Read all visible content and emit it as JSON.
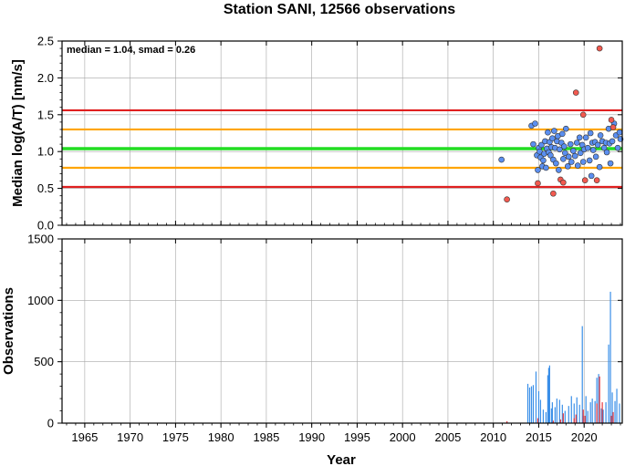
{
  "chart_data": [
    {
      "type": "scatter",
      "title": "Station SANI, 12566 observations",
      "xlabel": "",
      "ylabel": "Median log(A/T) [nm/s]",
      "xlim": [
        1962.5,
        2024.2
      ],
      "ylim": [
        0,
        2.5
      ],
      "y_ticks": [
        "0.0",
        "0.5",
        "1.0",
        "1.5",
        "2.0",
        "2.5"
      ],
      "grid": true,
      "annotation": "median = 1.04, smad = 0.26",
      "reference_lines": [
        {
          "role": "median",
          "y": 1.04,
          "color": "#22dd22"
        },
        {
          "role": "plus-one-smad",
          "y": 1.3,
          "color": "#ffa500"
        },
        {
          "role": "minus-one-smad",
          "y": 0.78,
          "color": "#ffa500"
        },
        {
          "role": "plus-two-smad",
          "y": 1.56,
          "color": "#e02020"
        },
        {
          "role": "minus-two-smad",
          "y": 0.52,
          "color": "#e02020"
        }
      ],
      "series": [
        {
          "color": "#5b8ff0",
          "points": [
            [
              2010.9,
              0.89
            ],
            [
              2014.2,
              1.35
            ],
            [
              2014.4,
              1.1
            ],
            [
              2014.6,
              1.38
            ],
            [
              2014.8,
              0.95
            ],
            [
              2014.9,
              0.75
            ],
            [
              2015.0,
              1.05
            ],
            [
              2015.1,
              1.0
            ],
            [
              2015.2,
              0.92
            ],
            [
              2015.3,
              1.09
            ],
            [
              2015.4,
              0.8
            ],
            [
              2015.5,
              0.88
            ],
            [
              2015.6,
              0.97
            ],
            [
              2015.7,
              1.14
            ],
            [
              2015.8,
              0.78
            ],
            [
              2015.9,
              1.04
            ],
            [
              2016.0,
              1.26
            ],
            [
              2016.1,
              0.99
            ],
            [
              2016.2,
              1.13
            ],
            [
              2016.3,
              0.95
            ],
            [
              2016.4,
              1.06
            ],
            [
              2016.5,
              1.18
            ],
            [
              2016.6,
              0.89
            ],
            [
              2016.7,
              1.28
            ],
            [
              2016.8,
              1.05
            ],
            [
              2016.9,
              0.84
            ],
            [
              2017.0,
              1.14
            ],
            [
              2017.1,
              1.21
            ],
            [
              2017.2,
              0.75
            ],
            [
              2017.3,
              1.03
            ],
            [
              2017.5,
              1.12
            ],
            [
              2017.6,
              1.24
            ],
            [
              2017.7,
              0.9
            ],
            [
              2017.8,
              1.07
            ],
            [
              2017.9,
              0.98
            ],
            [
              2018.0,
              1.31
            ],
            [
              2018.2,
              0.8
            ],
            [
              2018.3,
              0.93
            ],
            [
              2018.5,
              1.1
            ],
            [
              2018.6,
              0.86
            ],
            [
              2018.8,
              1.01
            ],
            [
              2019.0,
              0.94
            ],
            [
              2019.2,
              1.12
            ],
            [
              2019.3,
              0.81
            ],
            [
              2019.5,
              1.19
            ],
            [
              2019.6,
              0.98
            ],
            [
              2019.8,
              1.09
            ],
            [
              2019.9,
              0.86
            ],
            [
              2020.0,
              1.03
            ],
            [
              2020.2,
              1.19
            ],
            [
              2020.4,
              1.05
            ],
            [
              2020.6,
              0.88
            ],
            [
              2020.7,
              1.25
            ],
            [
              2020.8,
              0.67
            ],
            [
              2020.9,
              1.12
            ],
            [
              2021.0,
              1.02
            ],
            [
              2021.2,
              1.13
            ],
            [
              2021.3,
              0.93
            ],
            [
              2021.5,
              1.09
            ],
            [
              2021.7,
              0.79
            ],
            [
              2021.8,
              1.22
            ],
            [
              2022.0,
              1.14
            ],
            [
              2022.2,
              1.05
            ],
            [
              2022.4,
              1.12
            ],
            [
              2022.5,
              0.99
            ],
            [
              2022.7,
              1.31
            ],
            [
              2022.8,
              1.11
            ],
            [
              2022.9,
              0.84
            ],
            [
              2023.1,
              1.14
            ],
            [
              2023.3,
              1.38
            ],
            [
              2023.5,
              1.22
            ],
            [
              2023.7,
              1.05
            ],
            [
              2023.9,
              1.26
            ],
            [
              2024.0,
              1.17
            ]
          ]
        },
        {
          "color": "#f25a50",
          "points": [
            [
              2011.5,
              0.35
            ],
            [
              2014.9,
              0.57
            ],
            [
              2016.6,
              0.43
            ],
            [
              2017.4,
              0.62
            ],
            [
              2017.7,
              0.58
            ],
            [
              2019.1,
              1.8
            ],
            [
              2019.9,
              1.5
            ],
            [
              2020.1,
              0.61
            ],
            [
              2021.4,
              0.61
            ],
            [
              2021.7,
              2.4
            ],
            [
              2023.0,
              1.43
            ],
            [
              2023.2,
              1.33
            ]
          ]
        }
      ]
    },
    {
      "type": "bar",
      "title": "",
      "xlabel": "Year",
      "ylabel": "Observations",
      "xlim": [
        1962.5,
        2024.2
      ],
      "ylim": [
        0,
        1500
      ],
      "x_ticks": [
        "1965",
        "1970",
        "1975",
        "1980",
        "1985",
        "1990",
        "1995",
        "2000",
        "2005",
        "2010",
        "2015",
        "2020"
      ],
      "y_ticks": [
        "0",
        "500",
        "1000",
        "1500"
      ],
      "grid": true,
      "series": [
        {
          "color": "#3a8fe8",
          "bars": [
            [
              2011.5,
              15
            ],
            [
              2013.8,
              320
            ],
            [
              2014.0,
              290
            ],
            [
              2014.2,
              300
            ],
            [
              2014.4,
              310
            ],
            [
              2014.7,
              420
            ],
            [
              2015.0,
              260
            ],
            [
              2015.2,
              190
            ],
            [
              2015.5,
              110
            ],
            [
              2015.8,
              90
            ],
            [
              2016.0,
              390
            ],
            [
              2016.1,
              450
            ],
            [
              2016.2,
              470
            ],
            [
              2016.4,
              120
            ],
            [
              2016.5,
              170
            ],
            [
              2016.8,
              130
            ],
            [
              2017.0,
              200
            ],
            [
              2017.3,
              190
            ],
            [
              2017.6,
              150
            ],
            [
              2017.9,
              100
            ],
            [
              2018.3,
              140
            ],
            [
              2018.6,
              220
            ],
            [
              2018.9,
              160
            ],
            [
              2019.2,
              210
            ],
            [
              2019.5,
              150
            ],
            [
              2019.8,
              790
            ],
            [
              2019.9,
              60
            ],
            [
              2020.2,
              220
            ],
            [
              2020.4,
              100
            ],
            [
              2020.7,
              170
            ],
            [
              2020.9,
              200
            ],
            [
              2021.2,
              180
            ],
            [
              2021.4,
              370
            ],
            [
              2021.6,
              400
            ],
            [
              2021.9,
              120
            ],
            [
              2022.1,
              110
            ],
            [
              2022.4,
              170
            ],
            [
              2022.7,
              640
            ],
            [
              2022.9,
              1070
            ],
            [
              2023.1,
              250
            ],
            [
              2023.4,
              180
            ],
            [
              2023.6,
              280
            ],
            [
              2023.9,
              160
            ]
          ]
        },
        {
          "color": "#e8353a",
          "bars": [
            [
              2011.5,
              15
            ],
            [
              2014.9,
              40
            ],
            [
              2016.6,
              20
            ],
            [
              2017.4,
              30
            ],
            [
              2017.7,
              80
            ],
            [
              2018.9,
              40
            ],
            [
              2019.1,
              70
            ],
            [
              2019.9,
              110
            ],
            [
              2020.1,
              60
            ],
            [
              2021.4,
              160
            ],
            [
              2021.7,
              380
            ],
            [
              2022.0,
              170
            ],
            [
              2023.0,
              60
            ],
            [
              2023.2,
              90
            ]
          ]
        }
      ]
    }
  ]
}
